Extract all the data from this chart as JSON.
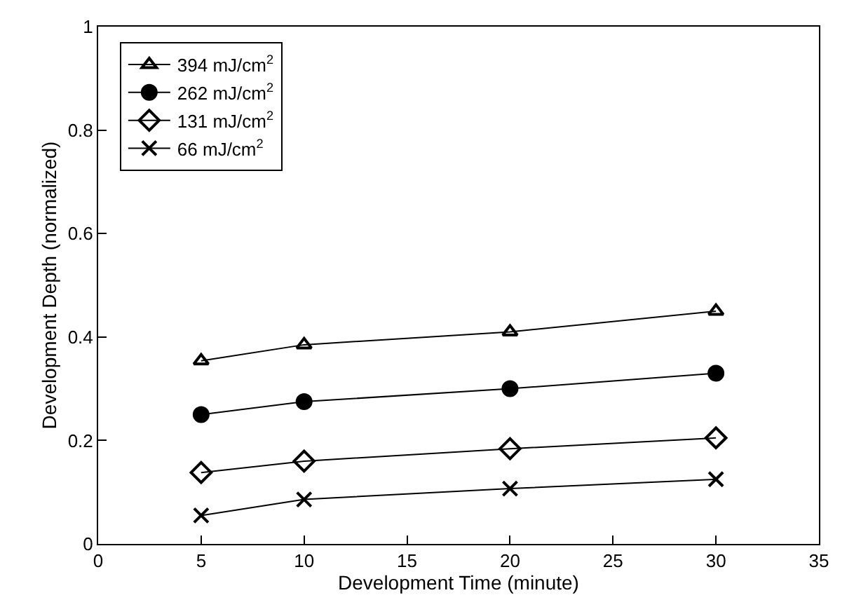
{
  "chart_data": {
    "type": "line",
    "xlabel": "Development Time (minute)",
    "ylabel": "Development Depth (normalized)",
    "x": [
      5,
      10,
      20,
      30
    ],
    "series": [
      {
        "name": "394 mJ/cm$^{2}$",
        "color": "#000000",
        "marker": "triangle",
        "values": [
          0.354,
          0.385,
          0.41,
          0.45
        ]
      },
      {
        "name": "262 mJ/cm$^{2}$",
        "color": "#000000",
        "marker": "circle",
        "values": [
          0.25,
          0.275,
          0.3,
          0.33
        ]
      },
      {
        "name": "131 mJ/cm$^{2}$",
        "color": "#000000",
        "marker": "diamond",
        "values": [
          0.138,
          0.16,
          0.184,
          0.205
        ]
      },
      {
        "name": "66 mJ/cm$^{2}$",
        "color": "#000000",
        "marker": "cross",
        "values": [
          0.055,
          0.086,
          0.107,
          0.125
        ]
      }
    ],
    "xlim": [
      0,
      35
    ],
    "xticks": [
      0,
      5,
      10,
      15,
      20,
      25,
      30,
      35
    ],
    "ylim": [
      0,
      1
    ],
    "yticks": [
      0,
      0.2,
      0.4,
      0.6,
      0.8,
      1
    ],
    "legend": "top left",
    "line_style": "solid"
  }
}
